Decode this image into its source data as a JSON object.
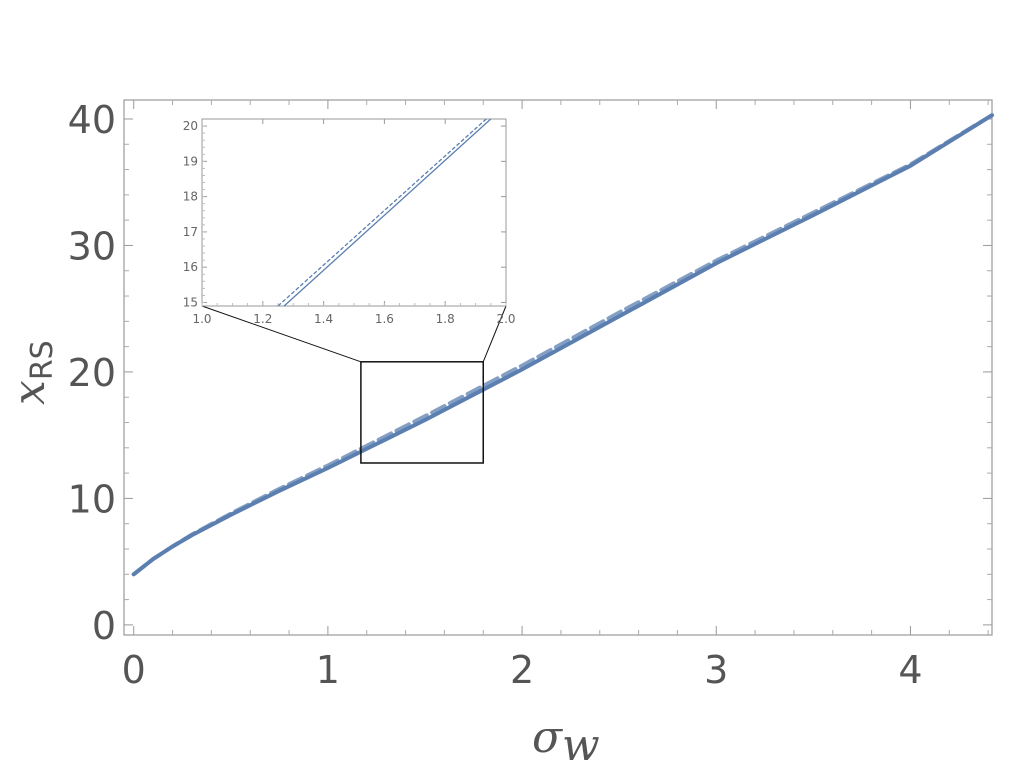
{
  "chart_data": {
    "type": "line",
    "xlabel": "σ",
    "xlabel_sub": "w",
    "ylabel": "x",
    "ylabel_sub": "RS",
    "xlim": [
      -0.05,
      4.42
    ],
    "ylim": [
      -0.8,
      41.5
    ],
    "x_ticks": [
      0,
      1,
      2,
      3,
      4
    ],
    "y_ticks": [
      0,
      10,
      20,
      30,
      40
    ],
    "grid": false,
    "legend": "none",
    "series": [
      {
        "style": "solid",
        "color": "#5b7fb0",
        "x": [
          0,
          0.1,
          0.2,
          0.3,
          0.5,
          0.75,
          1.0,
          1.25,
          1.5,
          1.75,
          2.0,
          2.5,
          3.0,
          3.5,
          4.0,
          4.42
        ],
        "y": [
          4.0,
          5.2,
          6.2,
          7.1,
          8.7,
          10.6,
          12.4,
          14.3,
          16.2,
          18.2,
          20.2,
          24.4,
          28.6,
          32.4,
          36.3,
          40.3
        ]
      },
      {
        "style": "dashed",
        "color": "#5b7fb0",
        "x": [
          0,
          0.1,
          0.2,
          0.3,
          0.5,
          0.75,
          1.0,
          1.25,
          1.5,
          1.75,
          2.0,
          2.5,
          3.0,
          3.5,
          4.0,
          4.42
        ],
        "y": [
          4.0,
          5.2,
          6.2,
          7.15,
          8.8,
          10.75,
          12.6,
          14.55,
          16.5,
          18.5,
          20.5,
          24.7,
          28.8,
          32.6,
          36.4,
          40.3
        ]
      }
    ],
    "zoom_box": {
      "x": [
        1.17,
        1.8
      ],
      "y": [
        12.8,
        20.8
      ]
    },
    "inset": {
      "xlim": [
        1.0,
        2.0
      ],
      "ylim": [
        14.9,
        20.2
      ],
      "x_ticks": [
        1.0,
        1.2,
        1.4,
        1.6,
        1.8,
        2.0
      ],
      "x_tick_labels": [
        "1.0",
        "1.2",
        "1.4",
        "1.6",
        "1.8",
        "2.0"
      ],
      "y_ticks": [
        15,
        16,
        17,
        18,
        19,
        20
      ],
      "y_tick_labels": [
        "15",
        "16",
        "17",
        "18",
        "19",
        "20"
      ],
      "solid": {
        "x": [
          1.27,
          1.95
        ],
        "y": [
          14.9,
          20.2
        ]
      },
      "dashed": {
        "x": [
          1.25,
          1.935
        ],
        "y": [
          14.9,
          20.2
        ]
      }
    }
  }
}
